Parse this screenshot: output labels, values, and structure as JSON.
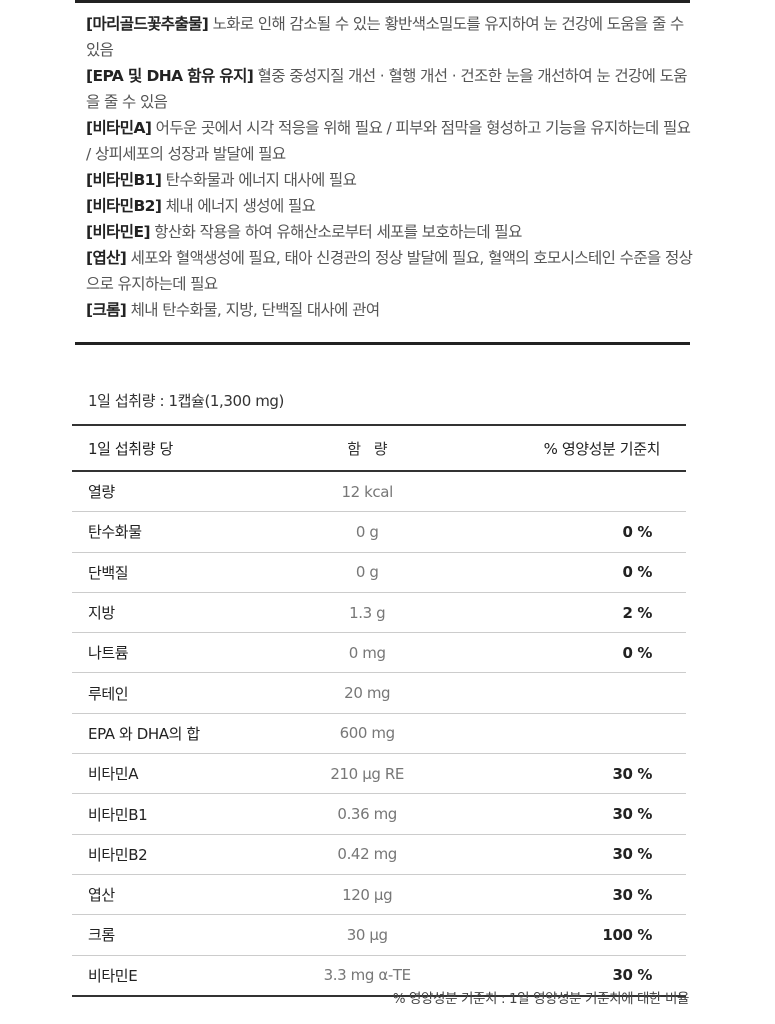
{
  "functions": [
    {
      "title": "[마리골드꽃추출물]",
      "text": " 노화로 인해 감소될 수 있는 황반색소밀도를 유지하여 눈 건강에 도움을 줄 수 있음"
    },
    {
      "title": "[EPA 및 DHA 함유 유지]",
      "text": " 혈중 중성지질 개선 · 혈행 개선 · 건조한 눈을 개선하여 눈 건강에 도움을 줄 수 있음"
    },
    {
      "title": "[비타민A]",
      "text": " 어두운 곳에서 시각 적응을 위해 필요 / 피부와 점막을 형성하고 기능을 유지하는데 필요 / 상피세포의 성장과 발달에 필요"
    },
    {
      "title": "[비타민B1]",
      "text": " 탄수화물과 에너지 대사에 필요"
    },
    {
      "title": "[비타민B2]",
      "text": " 체내 에너지 생성에 필요"
    },
    {
      "title": "[비타민E]",
      "text": " 항산화 작용을 하여 유해산소로부터 세포를 보호하는데 필요"
    },
    {
      "title": "[엽산]",
      "text": " 세포와 혈액생성에 필요, 태아 신경관의 정상 발달에 필요, 혈액의 호모시스테인 수준을 정상으로 유지하는데 필요"
    },
    {
      "title": "[크롬]",
      "text": " 체내 탄수화물, 지방, 단백질 대사에 관여"
    }
  ],
  "serving": "1일 섭취량 : 1캡슐(1,300 mg)",
  "table": {
    "headers": [
      "1일 섭취량 당",
      "함   량",
      "% 영양성분 기준치"
    ],
    "rows": [
      {
        "name": "열량",
        "amount": "12 kcal",
        "percent": ""
      },
      {
        "name": "탄수화물",
        "amount": "0 g",
        "percent": "0 %"
      },
      {
        "name": "단백질",
        "amount": "0 g",
        "percent": "0 %"
      },
      {
        "name": "지방",
        "amount": "1.3 g",
        "percent": "2 %"
      },
      {
        "name": "나트륨",
        "amount": "0 mg",
        "percent": "0 %"
      },
      {
        "name": "루테인",
        "amount": "20 mg",
        "percent": ""
      },
      {
        "name": "EPA 와 DHA의 합",
        "amount": "600 mg",
        "percent": ""
      },
      {
        "name": "비타민A",
        "amount": "210 μg RE",
        "percent": "30 %"
      },
      {
        "name": "비타민B1",
        "amount": "0.36 mg",
        "percent": "30 %"
      },
      {
        "name": "비타민B2",
        "amount": "0.42 mg",
        "percent": "30 %"
      },
      {
        "name": "엽산",
        "amount": "120 μg",
        "percent": "30 %"
      },
      {
        "name": "크롬",
        "amount": "30 μg",
        "percent": "100 %"
      },
      {
        "name": "비타민E",
        "amount": "3.3 mg α-TE",
        "percent": "30 %"
      }
    ]
  },
  "footnote": "% 영양성분 기준치 : 1일 영양성분 기준치에 대한 비율"
}
